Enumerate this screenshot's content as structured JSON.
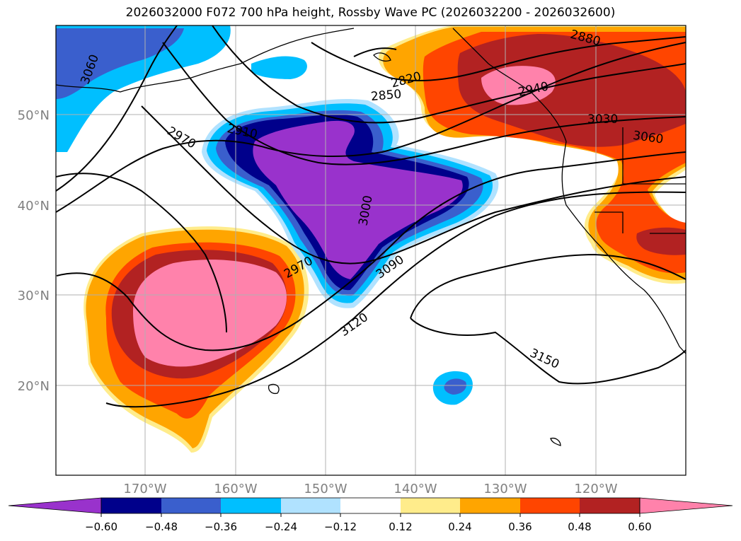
{
  "title": "2026032000 F072 700 hPa height, Rossby Wave PC (2026032200 - 2026032600)",
  "map": {
    "lat_labels": [
      "50°N",
      "40°N",
      "30°N",
      "20°N"
    ],
    "lon_labels": [
      "170°W",
      "160°W",
      "150°W",
      "140°W",
      "130°W",
      "120°W"
    ],
    "contour_labels": [
      "3060",
      "2970",
      "2910",
      "2850",
      "2820",
      "2940",
      "2880",
      "3030",
      "3060",
      "3000",
      "2970",
      "3090",
      "3120",
      "3150"
    ]
  },
  "colorbar": {
    "tick_labels": [
      "−0.60",
      "−0.48",
      "−0.36",
      "−0.24",
      "−0.12",
      "0.12",
      "0.24",
      "0.36",
      "0.48",
      "0.60"
    ],
    "colors": [
      "#9932CC",
      "#00008B",
      "#3A5FCD",
      "#00BFFF",
      "#B0E2FF",
      "#FFFFFF",
      "#FFEC8B",
      "#FFA500",
      "#FF4500",
      "#B22222",
      "#FF82AB"
    ]
  },
  "colors": {
    "grid": "#B0B0B0",
    "axis_label": "#808080",
    "contour": "#000000"
  }
}
